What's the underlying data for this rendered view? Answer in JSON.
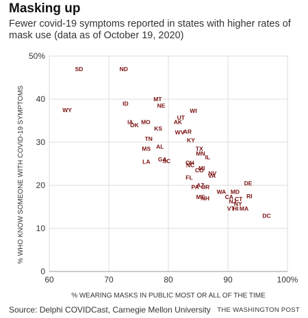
{
  "header": {
    "title": "Masking up",
    "subtitle": "Fewer covid-19 symptoms reported in states with higher rates of mask use (data as of October 19, 2020)"
  },
  "footer": {
    "source": "Source: Delphi COVIDCast, Carnegie Mellon University",
    "credit": "THE WASHINGTON POST"
  },
  "colors": {
    "marker": "#7a1010",
    "grid": "#dddddd",
    "axis": "#999999"
  },
  "chart_data": {
    "type": "scatter",
    "title": "",
    "xlabel": "% WEARING MASKS IN PUBLIC MOST OR ALL OF THE TIME",
    "ylabel": "% WHO KNOW SOMEONE WITH COVID-19 SYMPTOMS",
    "xlim": [
      60,
      100
    ],
    "ylim": [
      0,
      50
    ],
    "x_ticks": [
      60,
      70,
      80,
      90,
      100
    ],
    "x_tick_labels": [
      "60",
      "70",
      "80",
      "90",
      "100%"
    ],
    "y_ticks": [
      0,
      10,
      20,
      30,
      40,
      50
    ],
    "y_tick_labels": [
      "0",
      "10",
      "20",
      "30",
      "40",
      "50%"
    ],
    "grid": true,
    "points": [
      {
        "label": "SD",
        "x": 65,
        "y": 47
      },
      {
        "label": "ND",
        "x": 72.5,
        "y": 47
      },
      {
        "label": "WY",
        "x": 63,
        "y": 37.5
      },
      {
        "label": "ID",
        "x": 72.8,
        "y": 39
      },
      {
        "label": "MT",
        "x": 78.2,
        "y": 40
      },
      {
        "label": "NE",
        "x": 78.8,
        "y": 38.5
      },
      {
        "label": "WI",
        "x": 84.2,
        "y": 37.3
      },
      {
        "label": "UT",
        "x": 82.1,
        "y": 35.7
      },
      {
        "label": "AK",
        "x": 81.6,
        "y": 34.7
      },
      {
        "label": "IA",
        "x": 73.6,
        "y": 34.7
      },
      {
        "label": "MO",
        "x": 76.2,
        "y": 34.7
      },
      {
        "label": "OK",
        "x": 74.3,
        "y": 34.0
      },
      {
        "label": "KS",
        "x": 78.3,
        "y": 33.2
      },
      {
        "label": "WV",
        "x": 81.9,
        "y": 32.3
      },
      {
        "label": "AR",
        "x": 83.2,
        "y": 32.5
      },
      {
        "label": "TN",
        "x": 76.7,
        "y": 30.8
      },
      {
        "label": "KY",
        "x": 83.8,
        "y": 30.5
      },
      {
        "label": "AL",
        "x": 78.6,
        "y": 29.0
      },
      {
        "label": "MS",
        "x": 76.3,
        "y": 28.5
      },
      {
        "label": "TX",
        "x": 85.2,
        "y": 28.5
      },
      {
        "label": "MN",
        "x": 85.4,
        "y": 27.4
      },
      {
        "label": "IL",
        "x": 86.6,
        "y": 26.5
      },
      {
        "label": "GA",
        "x": 79.0,
        "y": 26.0
      },
      {
        "label": "LA",
        "x": 76.3,
        "y": 25.5
      },
      {
        "label": "SC",
        "x": 79.7,
        "y": 25.6
      },
      {
        "label": "OH",
        "x": 83.6,
        "y": 25.2
      },
      {
        "label": "NC",
        "x": 83.7,
        "y": 24.7
      },
      {
        "label": "MI",
        "x": 85.6,
        "y": 24.0
      },
      {
        "label": "CO",
        "x": 85.2,
        "y": 23.5
      },
      {
        "label": "NV",
        "x": 87.4,
        "y": 22.8
      },
      {
        "label": "VA",
        "x": 87.3,
        "y": 22.2
      },
      {
        "label": "FL",
        "x": 83.5,
        "y": 21.8
      },
      {
        "label": "AZ",
        "x": 85.4,
        "y": 20.0
      },
      {
        "label": "PA",
        "x": 84.5,
        "y": 19.6
      },
      {
        "label": "OR",
        "x": 86.2,
        "y": 19.6
      },
      {
        "label": "DE",
        "x": 93.4,
        "y": 20.5
      },
      {
        "label": "WA",
        "x": 88.9,
        "y": 18.5
      },
      {
        "label": "MD",
        "x": 91.2,
        "y": 18.5
      },
      {
        "label": "ME",
        "x": 85.4,
        "y": 17.3
      },
      {
        "label": "NH",
        "x": 86.2,
        "y": 17.0
      },
      {
        "label": "CA",
        "x": 90.2,
        "y": 17.3
      },
      {
        "label": "RI",
        "x": 93.6,
        "y": 17.5
      },
      {
        "label": "CT",
        "x": 91.8,
        "y": 16.8
      },
      {
        "label": "NJ",
        "x": 90.8,
        "y": 16.3
      },
      {
        "label": "NY",
        "x": 91.7,
        "y": 15.7
      },
      {
        "label": "VT",
        "x": 90.5,
        "y": 14.6
      },
      {
        "label": "HI",
        "x": 91.3,
        "y": 14.6
      },
      {
        "label": "MA",
        "x": 92.7,
        "y": 14.6
      },
      {
        "label": "DC",
        "x": 96.5,
        "y": 12.9
      }
    ]
  }
}
